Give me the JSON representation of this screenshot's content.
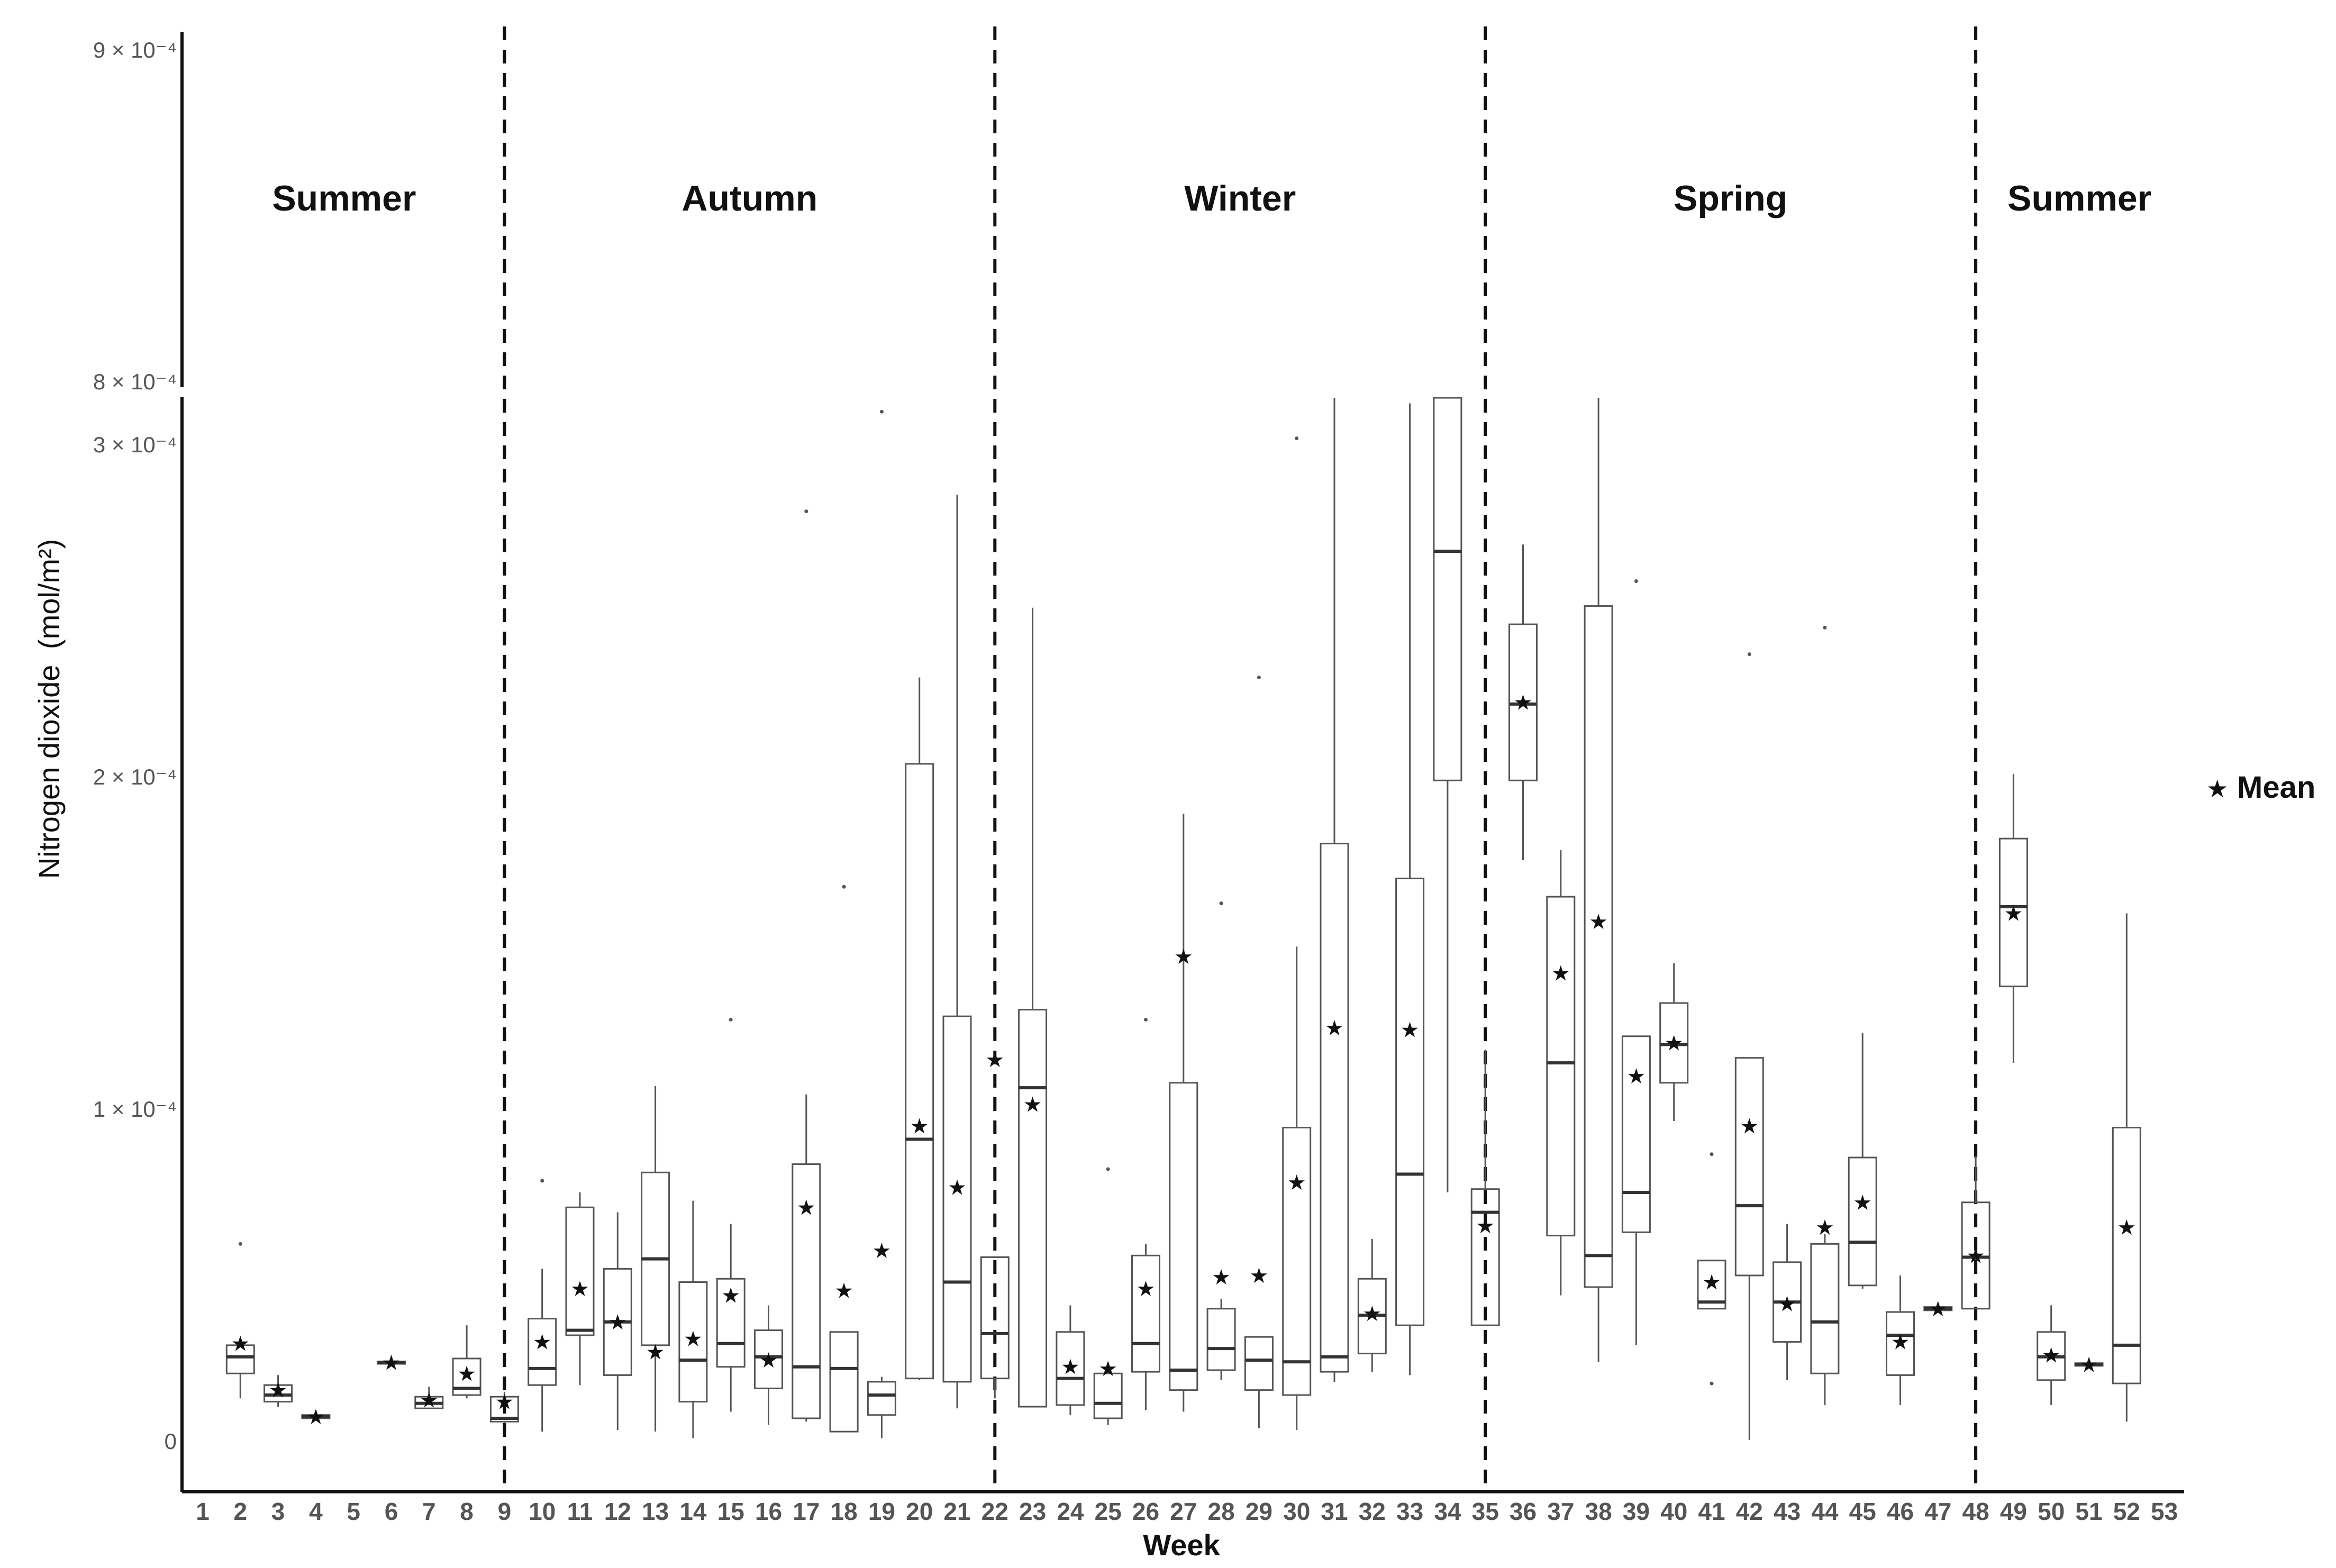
{
  "chart_data": {
    "type": "boxplot",
    "xlabel": "Week",
    "ylabel": "Nitrogen dioxide",
    "ylabel_unit": "(mol/m²)",
    "y_axis_break": {
      "lower_range": [
        0,
        0.00031
      ],
      "upper_range": [
        0.0008,
        0.0009
      ]
    },
    "yticks_lower": [
      {
        "value": 0,
        "label": "0"
      },
      {
        "value": 0.0001,
        "label": "1 × 10⁻⁴"
      },
      {
        "value": 0.0002,
        "label": "2 × 10⁻⁴"
      },
      {
        "value": 0.0003,
        "label": "3 × 10⁻⁴"
      }
    ],
    "yticks_upper": [
      {
        "value": 0.0008,
        "label": "8 × 10⁻⁴"
      },
      {
        "value": 0.0009,
        "label": "9 × 10⁻⁴"
      }
    ],
    "legend": {
      "label": "Mean",
      "symbol": "star",
      "position": "right"
    },
    "seasons": [
      {
        "name": "Summer",
        "start": 0.5,
        "end": 9
      },
      {
        "name": "Autumn",
        "start": 9,
        "end": 22
      },
      {
        "name": "Winter",
        "start": 22,
        "end": 35
      },
      {
        "name": "Spring",
        "start": 35,
        "end": 48
      },
      {
        "name": "Summer",
        "start": 48,
        "end": 53.5
      }
    ],
    "boundaries": [
      9,
      22,
      35,
      48
    ],
    "weeks": [
      {
        "week": 1
      },
      {
        "week": 2,
        "min": 1.3e-05,
        "q1": 2.05e-05,
        "median": 2.55e-05,
        "q3": 2.9e-05,
        "max": 3e-05,
        "mean": 2.95e-05,
        "outliers": [
          5.95e-05
        ]
      },
      {
        "week": 3,
        "min": 1.05e-05,
        "q1": 1.2e-05,
        "median": 1.4e-05,
        "q3": 1.7e-05,
        "max": 2e-05,
        "mean": 1.55e-05,
        "outliers": []
      },
      {
        "week": 4,
        "min": 6.5e-06,
        "q1": 7e-06,
        "median": 7.5e-06,
        "q3": 8e-06,
        "max": 8.5e-06,
        "mean": 7.5e-06,
        "outliers": []
      },
      {
        "week": 5
      },
      {
        "week": 6,
        "min": 2.3e-05,
        "q1": 2.34e-05,
        "median": 2.38e-05,
        "q3": 2.41e-05,
        "max": 2.45e-05,
        "mean": 2.38e-05,
        "outliers": []
      },
      {
        "week": 7,
        "min": 1e-05,
        "q1": 1e-05,
        "median": 1.15e-05,
        "q3": 1.35e-05,
        "max": 1.65e-05,
        "mean": 1.25e-05,
        "outliers": []
      },
      {
        "week": 8,
        "min": 1.3e-05,
        "q1": 1.4e-05,
        "median": 1.6e-05,
        "q3": 2.5e-05,
        "max": 3.5e-05,
        "mean": 2.05e-05,
        "outliers": []
      },
      {
        "week": 9,
        "min": 5.5e-06,
        "q1": 6e-06,
        "median": 7e-06,
        "q3": 1.35e-05,
        "max": 1.5e-05,
        "mean": 1.2e-05,
        "outliers": []
      },
      {
        "week": 10,
        "min": 3e-06,
        "q1": 1.7e-05,
        "median": 2.2e-05,
        "q3": 3.7e-05,
        "max": 5.2e-05,
        "mean": 3e-05,
        "outliers": [
          7.85e-05
        ]
      },
      {
        "week": 11,
        "min": 1.7e-05,
        "q1": 3.2e-05,
        "median": 3.35e-05,
        "q3": 7.05e-05,
        "max": 7.5e-05,
        "mean": 4.6e-05,
        "outliers": []
      },
      {
        "week": 12,
        "min": 3.5e-06,
        "q1": 2e-05,
        "median": 3.6e-05,
        "q3": 5.2e-05,
        "max": 6.9e-05,
        "mean": 3.6e-05,
        "outliers": []
      },
      {
        "week": 13,
        "min": 3e-06,
        "q1": 2.9e-05,
        "median": 5.5e-05,
        "q3": 8.1e-05,
        "max": 0.000107,
        "mean": 2.7e-05,
        "outliers": []
      },
      {
        "week": 14,
        "min": 1e-06,
        "q1": 1.2e-05,
        "median": 2.45e-05,
        "q3": 4.8e-05,
        "max": 7.25e-05,
        "mean": 3.1e-05,
        "outliers": []
      },
      {
        "week": 15,
        "min": 9e-06,
        "q1": 2.25e-05,
        "median": 2.95e-05,
        "q3": 4.9e-05,
        "max": 6.55e-05,
        "mean": 4.4e-05,
        "outliers": [
          0.000127
        ]
      },
      {
        "week": 16,
        "min": 5e-06,
        "q1": 1.6e-05,
        "median": 2.55e-05,
        "q3": 3.35e-05,
        "max": 4.1e-05,
        "mean": 2.45e-05,
        "outliers": []
      },
      {
        "week": 17,
        "min": 6e-06,
        "q1": 7e-06,
        "median": 2.25e-05,
        "q3": 8.35e-05,
        "max": 0.0001045,
        "mean": 7.05e-05,
        "outliers": [
          0.00028
        ]
      },
      {
        "week": 18,
        "min": 3e-06,
        "q1": 3e-06,
        "median": 2.2e-05,
        "q3": 3.3e-05,
        "max": 3.3e-05,
        "mean": 4.55e-05,
        "outliers": [
          0.000167
        ]
      },
      {
        "week": 19,
        "min": 1e-06,
        "q1": 8e-06,
        "median": 1.4e-05,
        "q3": 1.8e-05,
        "max": 1.95e-05,
        "mean": 5.75e-05,
        "outliers": [
          0.00031
        ]
      },
      {
        "week": 20,
        "min": 1.85e-05,
        "q1": 1.9e-05,
        "median": 9.1e-05,
        "q3": 0.000204,
        "max": 0.00023,
        "mean": 9.5e-05,
        "outliers": []
      },
      {
        "week": 21,
        "min": 1e-05,
        "q1": 1.8e-05,
        "median": 4.8e-05,
        "q3": 0.000128,
        "max": 0.000285,
        "mean": 7.65e-05,
        "outliers": []
      },
      {
        "week": 22,
        "min": 1.3e-05,
        "q1": 1.9e-05,
        "median": 3.25e-05,
        "q3": 5.55e-05,
        "max": 5.55e-05,
        "mean": 0.000115,
        "outliers": []
      },
      {
        "week": 23,
        "min": 1.05e-05,
        "q1": 1.05e-05,
        "median": 0.0001065,
        "q3": 0.00013,
        "max": 0.000251,
        "mean": 0.0001015,
        "outliers": []
      },
      {
        "week": 24,
        "min": 8e-06,
        "q1": 1.1e-05,
        "median": 1.9e-05,
        "q3": 3.3e-05,
        "max": 4.1e-05,
        "mean": 2.25e-05,
        "outliers": []
      },
      {
        "week": 25,
        "min": 5e-06,
        "q1": 7e-06,
        "median": 1.15e-05,
        "q3": 2.05e-05,
        "max": 2.05e-05,
        "mean": 2.2e-05,
        "outliers": [
          8.2e-05
        ]
      },
      {
        "week": 26,
        "min": 9.5e-06,
        "q1": 2.1e-05,
        "median": 2.95e-05,
        "q3": 5.6e-05,
        "max": 5.95e-05,
        "mean": 4.6e-05,
        "outliers": [
          0.000127
        ]
      },
      {
        "week": 27,
        "min": 9e-06,
        "q1": 1.55e-05,
        "median": 2.15e-05,
        "q3": 0.000108,
        "max": 0.000189,
        "mean": 0.000146,
        "outliers": []
      },
      {
        "week": 28,
        "min": 1.85e-05,
        "q1": 2.15e-05,
        "median": 2.8e-05,
        "q3": 4e-05,
        "max": 4.3e-05,
        "mean": 4.95e-05,
        "outliers": [
          0.000162
        ]
      },
      {
        "week": 29,
        "min": 4e-06,
        "q1": 1.55e-05,
        "median": 2.45e-05,
        "q3": 3.15e-05,
        "max": 3.15e-05,
        "mean": 5e-05,
        "outliers": [
          0.00023
        ]
      },
      {
        "week": 30,
        "min": 3.5e-06,
        "q1": 1.4e-05,
        "median": 2.4e-05,
        "q3": 9.45e-05,
        "max": 0.000149,
        "mean": 7.8e-05,
        "outliers": [
          0.000302
        ]
      },
      {
        "week": 31,
        "min": 1.8e-05,
        "q1": 2.1e-05,
        "median": 2.55e-05,
        "q3": 0.00018,
        "max": 0.000315,
        "mean": 0.0001245,
        "outliers": []
      },
      {
        "week": 32,
        "min": 2.1e-05,
        "q1": 2.65e-05,
        "median": 3.8e-05,
        "q3": 4.9e-05,
        "max": 6.1e-05,
        "mean": 3.85e-05,
        "outliers": []
      },
      {
        "week": 33,
        "min": 2e-05,
        "q1": 3.5e-05,
        "median": 8.05e-05,
        "q3": 0.0001695,
        "max": 0.0003125,
        "mean": 0.000124,
        "outliers": []
      },
      {
        "week": 34,
        "min": 7.5e-05,
        "q1": 0.000199,
        "median": 0.000268,
        "q3": 0.000315,
        "max": 0.000315,
        "mean": null,
        "outliers": []
      },
      {
        "week": 35,
        "min": 3.5e-05,
        "q1": 3.5e-05,
        "median": 6.9e-05,
        "q3": 7.6e-05,
        "max": 0.000118,
        "mean": 6.5e-05,
        "outliers": []
      },
      {
        "week": 36,
        "min": 0.000175,
        "q1": 0.000199,
        "median": 0.000222,
        "q3": 0.000246,
        "max": 0.00027,
        "mean": 0.0002225,
        "outliers": []
      },
      {
        "week": 37,
        "min": 4.4e-05,
        "q1": 6.2e-05,
        "median": 0.000114,
        "q3": 0.000164,
        "max": 0.000178,
        "mean": 0.000141,
        "outliers": []
      },
      {
        "week": 38,
        "min": 2.4e-05,
        "q1": 4.65e-05,
        "median": 5.6e-05,
        "q3": 0.0002515,
        "max": 0.000315,
        "mean": 0.0001565,
        "outliers": []
      },
      {
        "week": 39,
        "min": 2.9e-05,
        "q1": 6.3e-05,
        "median": 7.5e-05,
        "q3": 0.000122,
        "max": 0.000122,
        "mean": 0.00011,
        "outliers": [
          0.000259
        ]
      },
      {
        "week": 40,
        "min": 9.65e-05,
        "q1": 0.000108,
        "median": 0.0001195,
        "q3": 0.000132,
        "max": 0.000144,
        "mean": 0.00012,
        "outliers": []
      },
      {
        "week": 41,
        "min": 4e-05,
        "q1": 4e-05,
        "median": 4.2e-05,
        "q3": 5.45e-05,
        "max": 5.45e-05,
        "mean": 4.8e-05,
        "outliers": [
          8.65e-05,
          1.75e-05
        ]
      },
      {
        "week": 42,
        "min": 5e-07,
        "q1": 5e-05,
        "median": 7.1e-05,
        "q3": 0.0001155,
        "max": 0.0001155,
        "mean": 9.5e-05,
        "outliers": [
          0.000237
        ]
      },
      {
        "week": 43,
        "min": 1.85e-05,
        "q1": 3e-05,
        "median": 4.2e-05,
        "q3": 5.4e-05,
        "max": 6.55e-05,
        "mean": 4.15e-05,
        "outliers": []
      },
      {
        "week": 44,
        "min": 1.1e-05,
        "q1": 2.05e-05,
        "median": 3.6e-05,
        "q3": 5.95e-05,
        "max": 6.25e-05,
        "mean": 6.45e-05,
        "outliers": [
          0.000245
        ]
      },
      {
        "week": 45,
        "min": 4.6e-05,
        "q1": 4.7e-05,
        "median": 6e-05,
        "q3": 8.55e-05,
        "max": 0.000123,
        "mean": 7.2e-05,
        "outliers": []
      },
      {
        "week": 46,
        "min": 1.1e-05,
        "q1": 2e-05,
        "median": 3.2e-05,
        "q3": 3.9e-05,
        "max": 5e-05,
        "mean": 3e-05,
        "outliers": []
      },
      {
        "week": 47,
        "min": 3.9e-05,
        "q1": 3.95e-05,
        "median": 4e-05,
        "q3": 4.05e-05,
        "max": 4.1e-05,
        "mean": 4e-05,
        "outliers": []
      },
      {
        "week": 48,
        "min": 4e-05,
        "q1": 4e-05,
        "median": 5.55e-05,
        "q3": 7.2e-05,
        "max": 8.6e-05,
        "mean": 5.6e-05,
        "outliers": []
      },
      {
        "week": 49,
        "min": 0.000114,
        "q1": 0.000137,
        "median": 0.000161,
        "q3": 0.0001815,
        "max": 0.000201,
        "mean": 0.000159,
        "outliers": []
      },
      {
        "week": 50,
        "min": 1.1e-05,
        "q1": 1.85e-05,
        "median": 2.55e-05,
        "q3": 3.3e-05,
        "max": 4.1e-05,
        "mean": 2.6e-05,
        "outliers": []
      },
      {
        "week": 51,
        "min": 2.25e-05,
        "q1": 2.28e-05,
        "median": 2.32e-05,
        "q3": 2.36e-05,
        "max": 2.4e-05,
        "mean": 2.32e-05,
        "outliers": []
      },
      {
        "week": 52,
        "min": 6e-06,
        "q1": 1.75e-05,
        "median": 2.9e-05,
        "q3": 9.45e-05,
        "max": 0.000159,
        "mean": 6.45e-05,
        "outliers": []
      },
      {
        "week": 53
      }
    ]
  }
}
